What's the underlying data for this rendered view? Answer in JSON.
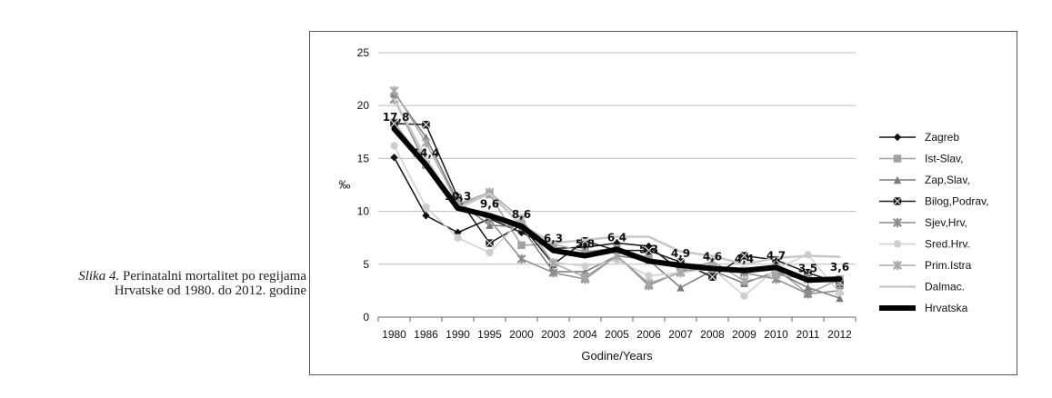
{
  "caption": {
    "label": "Slika 4.",
    "text": " Perinatalni mortalitet po regijama Hrvatske od 1980. do 2012. godine"
  },
  "chart_data": {
    "type": "line",
    "xlabel": "Godine/Years",
    "ylabel": "‰",
    "ylim": [
      0,
      25
    ],
    "yticks": [
      "0",
      "5",
      "10",
      "15",
      "20",
      "25"
    ],
    "grid": true,
    "legend_position": "right",
    "categories": [
      "1980",
      "1986",
      "1990",
      "1995",
      "2000",
      "2003",
      "2004",
      "2005",
      "2006",
      "2007",
      "2008",
      "2009",
      "2010",
      "2011",
      "2012"
    ],
    "series": [
      {
        "name": "Zagreb",
        "color": "#111111",
        "marker": "diamond",
        "width": 1.5,
        "values": [
          15.1,
          9.6,
          8.0,
          9.3,
          8.0,
          6.5,
          6.6,
          7.0,
          6.7,
          4.4,
          4.5,
          4.3,
          4.7,
          3.7,
          3.4
        ]
      },
      {
        "name": "Ist-Slav,",
        "color": "#a0a0a0",
        "marker": "square",
        "width": 1.5,
        "values": [
          18.4,
          14.4,
          10.6,
          11.6,
          6.8,
          6.9,
          6.2,
          6.5,
          5.6,
          4.6,
          4.5,
          4.4,
          4.6,
          2.2,
          3.6
        ]
      },
      {
        "name": "Zap,Slav,",
        "color": "#7a7a7a",
        "marker": "triangle",
        "width": 1.5,
        "values": [
          21.2,
          17.0,
          10.9,
          8.7,
          8.5,
          4.3,
          4.3,
          5.8,
          5.4,
          2.8,
          4.4,
          3.2,
          4.3,
          2.8,
          1.8
        ]
      },
      {
        "name": "Bilog,Podrav,",
        "color": "#1a1a1a",
        "marker": "xsquare",
        "width": 1.5,
        "values": [
          18.3,
          18.2,
          11.3,
          7.0,
          8.7,
          5.0,
          7.2,
          6.3,
          6.3,
          5.2,
          3.8,
          5.8,
          5.4,
          4.2,
          3.2
        ]
      },
      {
        "name": "Sjev,Hrv,",
        "color": "#8c8c8c",
        "marker": "star",
        "width": 1.5,
        "values": [
          20.6,
          14.4,
          10.8,
          9.2,
          5.5,
          4.2,
          3.6,
          5.8,
          3.0,
          4.3,
          4.6,
          4.2,
          3.6,
          2.2,
          2.5
        ]
      },
      {
        "name": "Sred.Hrv.",
        "color": "#cfcfcf",
        "marker": "circle",
        "width": 1.5,
        "values": [
          16.2,
          10.4,
          7.5,
          6.1,
          9.2,
          5.2,
          4.8,
          5.4,
          3.9,
          4.2,
          4.6,
          2.0,
          4.6,
          5.9,
          2.3
        ]
      },
      {
        "name": "Prim.Istra",
        "color": "#a8a8a8",
        "marker": "star",
        "width": 1.5,
        "values": [
          21.4,
          16.5,
          10.7,
          11.8,
          9.3,
          5.1,
          3.8,
          5.8,
          3.2,
          4.2,
          5.3,
          3.4,
          4.0,
          3.6,
          3.3
        ]
      },
      {
        "name": "Dalmac.",
        "color": "#c8c8c8",
        "marker": "none",
        "width": 2.5,
        "values": [
          20.6,
          15.0,
          10.3,
          11.7,
          8.7,
          7.0,
          7.3,
          7.6,
          7.6,
          6.2,
          5.8,
          5.0,
          5.6,
          5.8,
          5.7
        ]
      },
      {
        "name": "Hrvatska",
        "color": "#000000",
        "marker": "none",
        "width": 6,
        "values": [
          17.8,
          14.4,
          10.3,
          9.6,
          8.6,
          6.3,
          5.8,
          6.4,
          5.3,
          4.9,
          4.6,
          4.4,
          4.7,
          3.5,
          3.6
        ]
      }
    ],
    "data_labels": [
      "17,8",
      "14,4",
      "10,3",
      "9,6",
      "8,6",
      "6,3",
      "5,8",
      "6,4",
      "5,3",
      "4,9",
      "4,6",
      "4,4",
      "4,7",
      "3,5",
      "3,6"
    ]
  }
}
